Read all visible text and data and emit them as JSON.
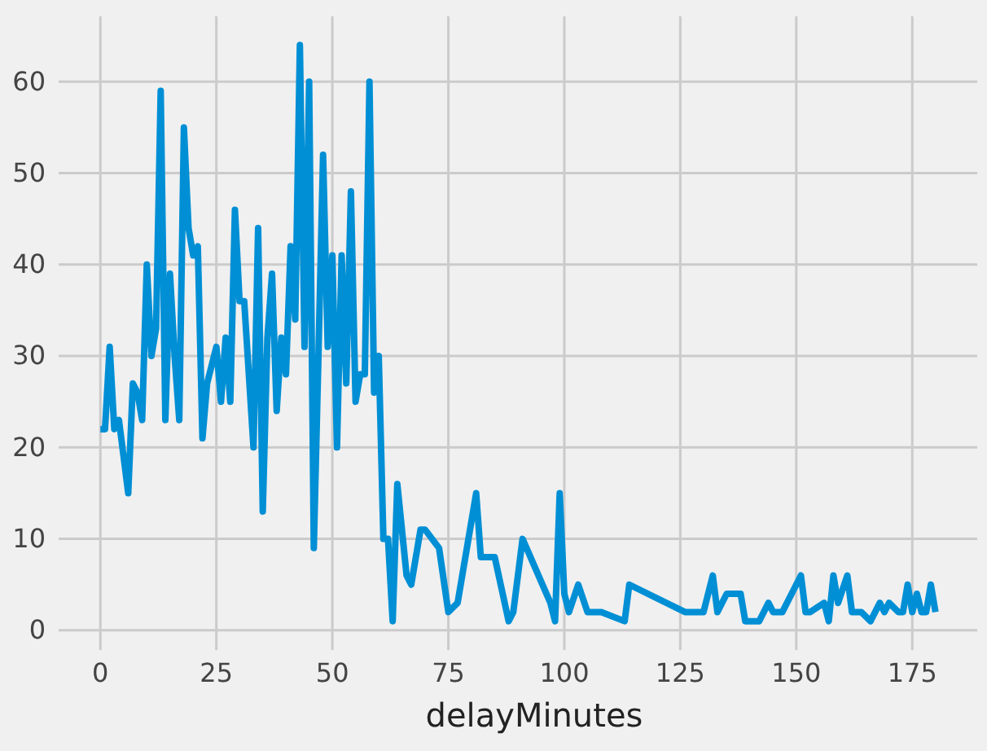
{
  "chart_data": {
    "type": "line",
    "xlabel": "delayMinutes",
    "x": [
      0,
      1,
      2,
      3,
      4,
      6,
      7,
      8,
      9,
      10,
      11,
      12,
      13,
      14,
      15,
      16,
      17,
      18,
      19,
      20,
      21,
      22,
      23,
      25,
      26,
      27,
      28,
      29,
      30,
      31,
      33,
      34,
      35,
      36,
      37,
      38,
      39,
      40,
      41,
      42,
      43,
      44,
      45,
      46,
      47,
      48,
      49,
      50,
      51,
      52,
      53,
      54,
      55,
      56,
      57,
      58,
      59,
      60,
      61,
      62,
      63,
      64,
      66,
      67,
      69,
      70,
      73,
      75,
      77,
      81,
      82,
      85,
      88,
      89,
      91,
      97,
      98,
      99,
      100,
      101,
      103,
      105,
      108,
      113,
      114,
      126,
      130,
      132,
      133,
      135,
      138,
      139,
      142,
      144,
      145,
      147,
      151,
      152,
      153,
      156,
      157,
      158,
      159,
      161,
      162,
      164,
      166,
      168,
      169,
      170,
      172,
      173,
      174,
      175,
      176,
      177,
      178,
      179,
      180
    ],
    "series": [
      {
        "color": "#008fd5",
        "values": [
          22,
          22,
          31,
          22,
          23,
          15,
          27,
          26,
          23,
          40,
          30,
          33,
          59,
          23,
          39,
          30,
          23,
          55,
          44,
          41,
          42,
          21,
          27,
          31,
          25,
          32,
          25,
          46,
          36,
          36,
          20,
          44,
          13,
          32,
          39,
          24,
          32,
          28,
          42,
          34,
          64,
          31,
          60,
          9,
          30,
          52,
          31,
          41,
          20,
          41,
          27,
          48,
          25,
          28,
          28,
          60,
          26,
          30,
          10,
          10,
          1,
          16,
          6,
          5,
          11,
          11,
          9,
          2,
          3,
          15,
          8,
          8,
          1,
          2,
          10,
          3,
          1,
          15,
          4,
          2,
          5,
          2,
          2,
          1,
          5,
          2,
          2,
          6,
          2,
          4,
          4,
          1,
          1,
          3,
          2,
          2,
          6,
          2,
          2,
          3,
          1,
          6,
          3,
          6,
          2,
          2,
          1,
          3,
          2,
          3,
          2,
          2,
          5,
          2,
          4,
          2,
          2,
          5,
          2
        ]
      }
    ],
    "xlim": [
      -9,
      189
    ],
    "ylim": [
      -2.15,
      67.15
    ],
    "xticks": [
      0,
      25,
      50,
      75,
      100,
      125,
      150,
      175
    ],
    "yticks": [
      0,
      10,
      20,
      30,
      40,
      50,
      60
    ],
    "grid": true,
    "line_style": "solid",
    "marker": "none"
  }
}
